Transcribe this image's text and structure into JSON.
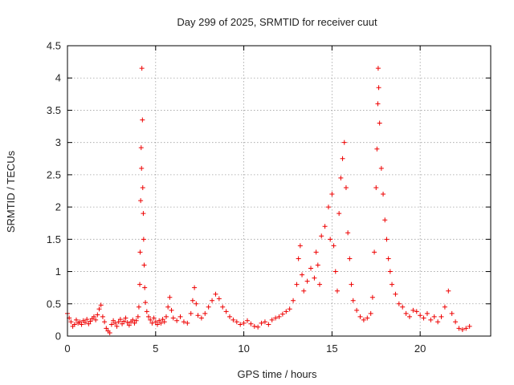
{
  "chart_data": {
    "type": "scatter",
    "title": "Day 299 of 2025, SRMTID for receiver cuut",
    "xlabel": "GPS time / hours",
    "ylabel": "SRMTID / TECUs",
    "xlim": [
      0,
      24
    ],
    "ylim": [
      0,
      4.5
    ],
    "xticks": [
      0,
      5,
      10,
      15,
      20
    ],
    "yticks": [
      0,
      0.5,
      1,
      1.5,
      2,
      2.5,
      3,
      3.5,
      4,
      4.5
    ],
    "grid": true,
    "marker": "+",
    "series": [
      {
        "name": "SRMTID",
        "color": "#ee0000",
        "points": [
          [
            0.0,
            0.35
          ],
          [
            0.1,
            0.28
          ],
          [
            0.2,
            0.22
          ],
          [
            0.3,
            0.15
          ],
          [
            0.4,
            0.18
          ],
          [
            0.5,
            0.25
          ],
          [
            0.6,
            0.2
          ],
          [
            0.7,
            0.22
          ],
          [
            0.8,
            0.18
          ],
          [
            0.9,
            0.24
          ],
          [
            1.0,
            0.21
          ],
          [
            1.1,
            0.26
          ],
          [
            1.2,
            0.19
          ],
          [
            1.3,
            0.23
          ],
          [
            1.4,
            0.27
          ],
          [
            1.5,
            0.3
          ],
          [
            1.6,
            0.25
          ],
          [
            1.7,
            0.33
          ],
          [
            1.8,
            0.42
          ],
          [
            1.9,
            0.48
          ],
          [
            2.0,
            0.3
          ],
          [
            2.1,
            0.22
          ],
          [
            2.2,
            0.12
          ],
          [
            2.3,
            0.08
          ],
          [
            2.4,
            0.05
          ],
          [
            2.5,
            0.18
          ],
          [
            2.6,
            0.24
          ],
          [
            2.7,
            0.2
          ],
          [
            2.8,
            0.15
          ],
          [
            2.9,
            0.22
          ],
          [
            3.0,
            0.26
          ],
          [
            3.1,
            0.19
          ],
          [
            3.2,
            0.23
          ],
          [
            3.3,
            0.28
          ],
          [
            3.4,
            0.21
          ],
          [
            3.5,
            0.17
          ],
          [
            3.6,
            0.22
          ],
          [
            3.7,
            0.25
          ],
          [
            3.8,
            0.2
          ],
          [
            3.9,
            0.24
          ],
          [
            4.0,
            0.3
          ],
          [
            4.05,
            0.45
          ],
          [
            4.1,
            0.8
          ],
          [
            4.12,
            1.3
          ],
          [
            4.15,
            2.1
          ],
          [
            4.18,
            2.92
          ],
          [
            4.2,
            2.6
          ],
          [
            4.22,
            4.15
          ],
          [
            4.25,
            3.35
          ],
          [
            4.27,
            2.3
          ],
          [
            4.3,
            1.9
          ],
          [
            4.32,
            1.5
          ],
          [
            4.35,
            1.1
          ],
          [
            4.38,
            0.75
          ],
          [
            4.42,
            0.52
          ],
          [
            4.5,
            0.38
          ],
          [
            4.6,
            0.3
          ],
          [
            4.7,
            0.25
          ],
          [
            4.8,
            0.2
          ],
          [
            4.9,
            0.28
          ],
          [
            5.0,
            0.22
          ],
          [
            5.1,
            0.18
          ],
          [
            5.2,
            0.24
          ],
          [
            5.3,
            0.2
          ],
          [
            5.4,
            0.26
          ],
          [
            5.5,
            0.22
          ],
          [
            5.6,
            0.3
          ],
          [
            5.7,
            0.45
          ],
          [
            5.8,
            0.6
          ],
          [
            5.9,
            0.4
          ],
          [
            6.0,
            0.28
          ],
          [
            6.2,
            0.24
          ],
          [
            6.4,
            0.3
          ],
          [
            6.6,
            0.22
          ],
          [
            6.8,
            0.2
          ],
          [
            7.0,
            0.35
          ],
          [
            7.1,
            0.55
          ],
          [
            7.2,
            0.75
          ],
          [
            7.3,
            0.5
          ],
          [
            7.4,
            0.32
          ],
          [
            7.6,
            0.28
          ],
          [
            7.8,
            0.35
          ],
          [
            8.0,
            0.45
          ],
          [
            8.2,
            0.55
          ],
          [
            8.4,
            0.65
          ],
          [
            8.6,
            0.58
          ],
          [
            8.8,
            0.45
          ],
          [
            9.0,
            0.38
          ],
          [
            9.2,
            0.3
          ],
          [
            9.4,
            0.25
          ],
          [
            9.6,
            0.22
          ],
          [
            9.8,
            0.18
          ],
          [
            10.0,
            0.2
          ],
          [
            10.2,
            0.24
          ],
          [
            10.4,
            0.19
          ],
          [
            10.6,
            0.15
          ],
          [
            10.8,
            0.14
          ],
          [
            11.0,
            0.2
          ],
          [
            11.2,
            0.22
          ],
          [
            11.4,
            0.18
          ],
          [
            11.6,
            0.25
          ],
          [
            11.8,
            0.28
          ],
          [
            12.0,
            0.3
          ],
          [
            12.2,
            0.34
          ],
          [
            12.4,
            0.38
          ],
          [
            12.6,
            0.42
          ],
          [
            12.8,
            0.55
          ],
          [
            13.0,
            0.8
          ],
          [
            13.1,
            1.2
          ],
          [
            13.2,
            1.4
          ],
          [
            13.3,
            0.95
          ],
          [
            13.4,
            0.7
          ],
          [
            13.6,
            0.85
          ],
          [
            13.8,
            1.05
          ],
          [
            14.0,
            0.9
          ],
          [
            14.1,
            1.3
          ],
          [
            14.2,
            1.1
          ],
          [
            14.3,
            0.8
          ],
          [
            14.4,
            1.55
          ],
          [
            14.6,
            1.7
          ],
          [
            14.8,
            2.0
          ],
          [
            14.9,
            1.5
          ],
          [
            15.0,
            2.2
          ],
          [
            15.1,
            1.4
          ],
          [
            15.2,
            1.0
          ],
          [
            15.3,
            0.7
          ],
          [
            15.4,
            1.9
          ],
          [
            15.5,
            2.45
          ],
          [
            15.6,
            2.75
          ],
          [
            15.7,
            3.0
          ],
          [
            15.8,
            2.3
          ],
          [
            15.9,
            1.6
          ],
          [
            16.0,
            1.2
          ],
          [
            16.1,
            0.8
          ],
          [
            16.2,
            0.55
          ],
          [
            16.4,
            0.4
          ],
          [
            16.6,
            0.3
          ],
          [
            16.8,
            0.25
          ],
          [
            17.0,
            0.28
          ],
          [
            17.2,
            0.35
          ],
          [
            17.3,
            0.6
          ],
          [
            17.4,
            1.3
          ],
          [
            17.5,
            2.3
          ],
          [
            17.55,
            2.9
          ],
          [
            17.6,
            3.6
          ],
          [
            17.62,
            4.15
          ],
          [
            17.65,
            3.85
          ],
          [
            17.7,
            3.3
          ],
          [
            17.8,
            2.6
          ],
          [
            17.9,
            2.2
          ],
          [
            18.0,
            1.8
          ],
          [
            18.1,
            1.5
          ],
          [
            18.2,
            1.2
          ],
          [
            18.3,
            1.0
          ],
          [
            18.4,
            0.8
          ],
          [
            18.6,
            0.65
          ],
          [
            18.8,
            0.5
          ],
          [
            19.0,
            0.45
          ],
          [
            19.2,
            0.35
          ],
          [
            19.4,
            0.3
          ],
          [
            19.6,
            0.4
          ],
          [
            19.8,
            0.38
          ],
          [
            20.0,
            0.32
          ],
          [
            20.2,
            0.28
          ],
          [
            20.4,
            0.35
          ],
          [
            20.6,
            0.25
          ],
          [
            20.8,
            0.3
          ],
          [
            21.0,
            0.22
          ],
          [
            21.2,
            0.3
          ],
          [
            21.4,
            0.45
          ],
          [
            21.6,
            0.7
          ],
          [
            21.8,
            0.35
          ],
          [
            22.0,
            0.22
          ],
          [
            22.2,
            0.12
          ],
          [
            22.4,
            0.1
          ],
          [
            22.6,
            0.12
          ],
          [
            22.8,
            0.15
          ]
        ]
      }
    ]
  }
}
